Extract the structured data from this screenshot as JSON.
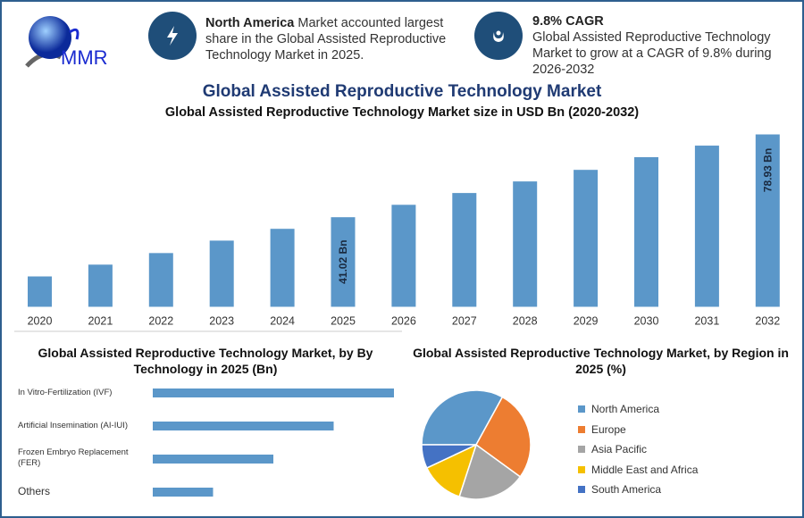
{
  "header": {
    "logo_text": "MMR",
    "info1": {
      "bold": "North America",
      "text": " Market accounted largest share in the Global Assisted Reproductive Technology Market in 2025.",
      "icon": "lightning-icon"
    },
    "info2": {
      "bold": "9.8% CAGR",
      "text": "Global Assisted Reproductive Technology Market to grow at a CAGR of 9.8% during 2026-2032",
      "icon": "growth-icon"
    }
  },
  "title": "Global Assisted Reproductive Technology Market",
  "colors": {
    "bar": "#5b97c9",
    "accent": "#1f4e79",
    "title": "#1f3a73"
  },
  "chart_data": [
    {
      "type": "bar",
      "title": "Global Assisted Reproductive Technology Market size in USD Bn (2020-2032)",
      "categories": [
        "2020",
        "2021",
        "2022",
        "2023",
        "2024",
        "2025",
        "2026",
        "2027",
        "2028",
        "2029",
        "2030",
        "2031",
        "2032"
      ],
      "values": [
        13.9,
        19.3,
        24.6,
        30.3,
        35.7,
        41.02,
        46.7,
        52.1,
        57.4,
        62.7,
        68.5,
        73.8,
        78.93
      ],
      "data_labels": {
        "2025": "41.02 Bn",
        "2032": "78.93 Bn"
      },
      "ylim": [
        0,
        80
      ],
      "grid": false
    },
    {
      "type": "bar",
      "orientation": "horizontal",
      "title": "Global Assisted Reproductive Technology Market, by By Technology in 2025 (Bn)",
      "categories": [
        "In Vitro-Fertilization (IVF)",
        "Artificial Insemination (AI-IUI)",
        "Frozen Embryo Replacement (FER)",
        "Others"
      ],
      "values": [
        1.0,
        0.75,
        0.5,
        0.25
      ],
      "value_note_relative": true
    },
    {
      "type": "pie",
      "title": "Global Assisted Reproductive Technology Market, by Region in 2025 (%)",
      "categories": [
        "North America",
        "Europe",
        "Asia Pacific",
        "Middle East and Africa",
        "South America"
      ],
      "values": [
        33,
        27,
        20,
        13,
        7
      ],
      "colors": [
        "#5b97c9",
        "#ed7d31",
        "#a5a5a5",
        "#f5c000",
        "#4472c4"
      ],
      "legend": "right"
    }
  ]
}
